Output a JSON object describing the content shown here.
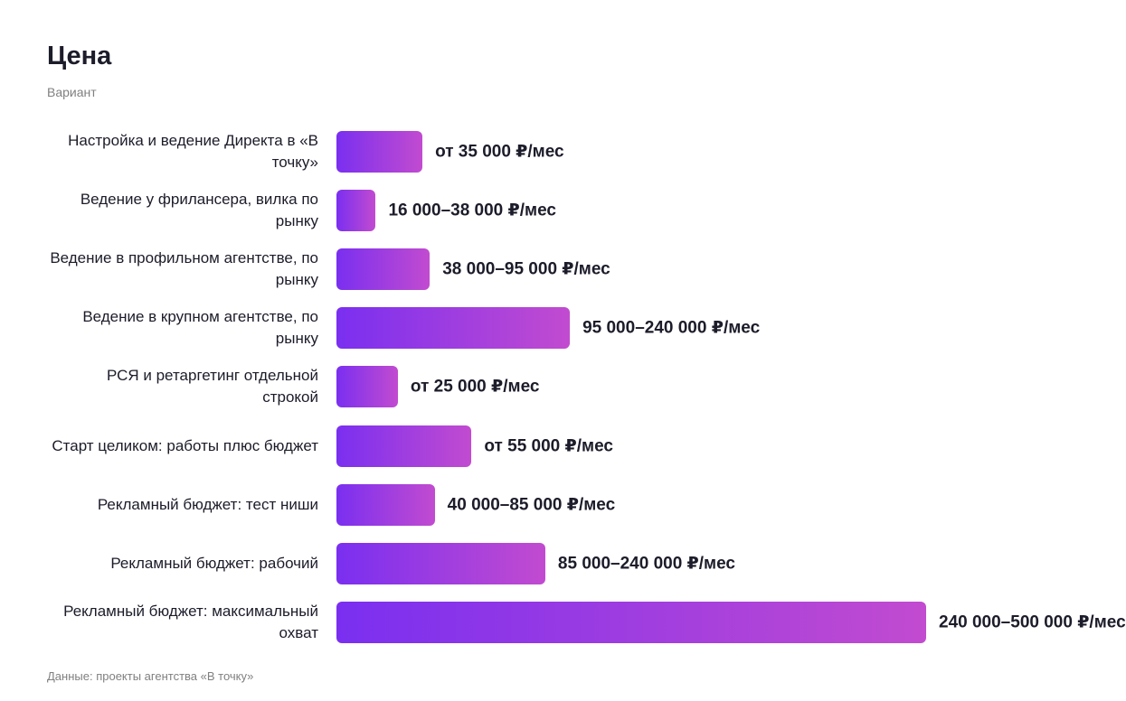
{
  "chart_data": {
    "type": "hbar",
    "title": "Цена",
    "subtitle": "Вариант",
    "source": "Данные: проекты агентства «В точку»",
    "categories": [
      "Настройка и ведение Директа в «В точку»",
      "Ведение у фрилансера, вилка по рынку",
      "Ведение в профильном агентстве, по рынку",
      "Ведение в крупном агентстве, по рынку",
      "РСЯ и ретаргетинг отдельной строкой",
      "Старт целиком: работы плюс бюджет",
      "Рекламный бюджет: тест ниши",
      "Рекламный бюджет: рабочий",
      "Рекламный бюджет: максимальный охват"
    ],
    "values": [
      35000,
      16000,
      38000,
      95000,
      25000,
      55000,
      40000,
      85000,
      240000
    ],
    "value_labels": [
      "от 35 000 ₽/мес",
      "16 000–38 000 ₽/мес",
      "38 000–95 000 ₽/мес",
      "95 000–240 000 ₽/мес",
      "от 25 000 ₽/мес",
      "от 55 000 ₽/мес",
      "40 000–85 000 ₽/мес",
      "85 000–240 000 ₽/мес",
      "240 000–500 000 ₽/мес"
    ],
    "colors": [
      "#7a2ff0",
      "#c24bd0"
    ]
  }
}
